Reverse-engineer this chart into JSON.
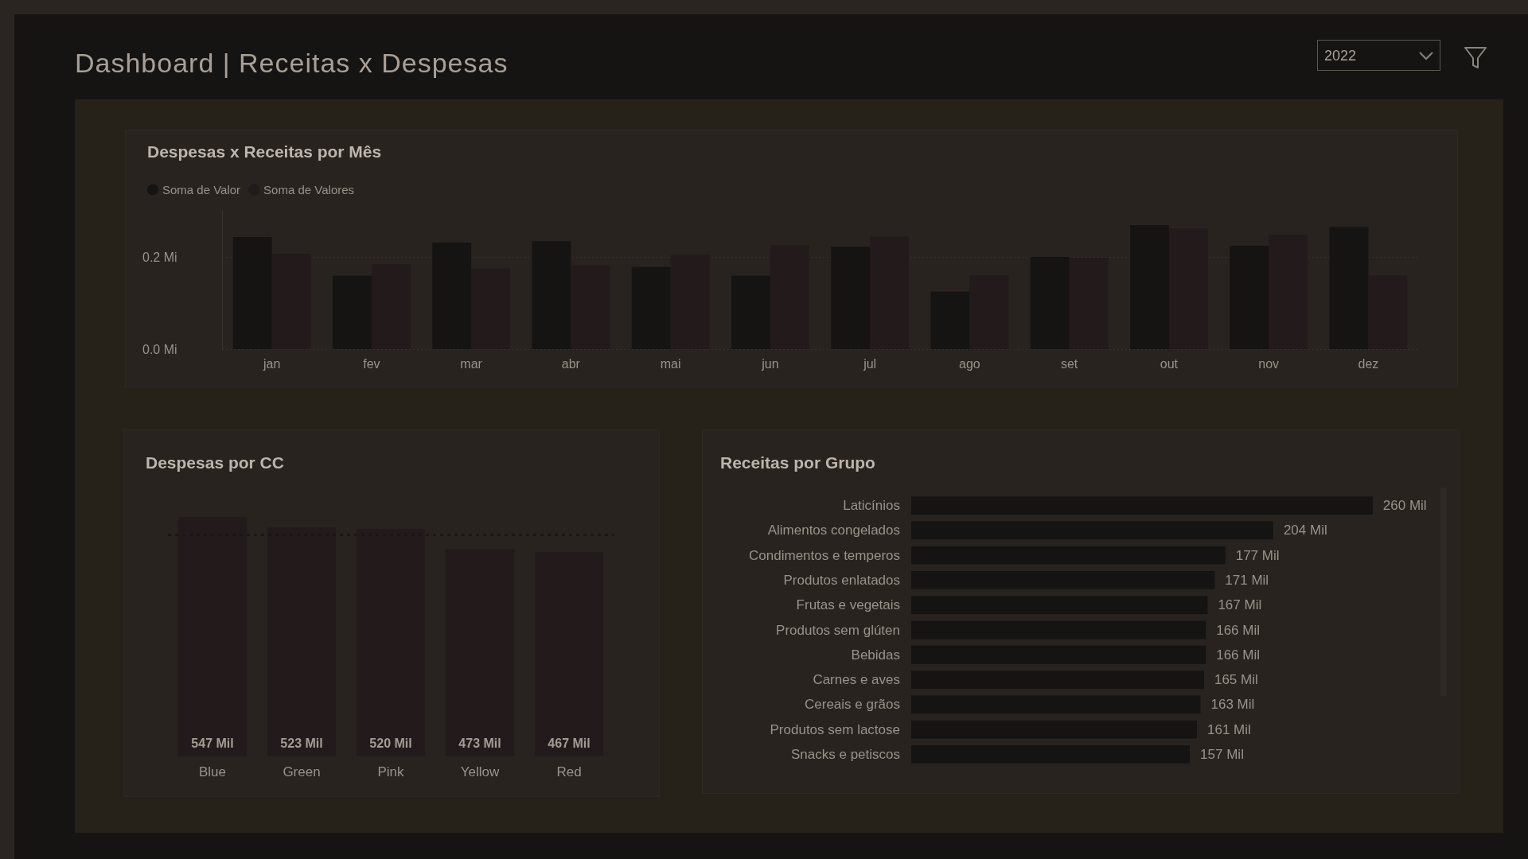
{
  "chart_data": [
    {
      "type": "other",
      "title": "Dashboard | Receitas x Despesas",
      "annotations": [
        "2022"
      ]
    },
    {
      "type": "bar",
      "title": "Despesas x Receitas por Mês",
      "categories": [
        "jan",
        "fev",
        "mar",
        "abr",
        "mai",
        "jun",
        "jul",
        "ago",
        "set",
        "out",
        "nov",
        "dez"
      ],
      "series": [
        {
          "name": "Soma de Valor",
          "color": "#151412",
          "values": [
            0.243,
            0.159,
            0.231,
            0.234,
            0.178,
            0.159,
            0.222,
            0.125,
            0.2,
            0.269,
            0.224,
            0.265
          ]
        },
        {
          "name": "Soma de Valores",
          "color": "#231a1b",
          "values": [
            0.207,
            0.184,
            0.175,
            0.182,
            0.204,
            0.225,
            0.244,
            0.16,
            0.198,
            0.262,
            0.248,
            0.16
          ]
        }
      ],
      "ylim": [
        0,
        0.3
      ],
      "yticks": [
        {
          "value": 0,
          "label": "0.0 Mi"
        },
        {
          "value": 0.2,
          "label": "0.2 Mi"
        }
      ],
      "legend": "top left",
      "grid": "y"
    },
    {
      "type": "bar",
      "title": "Despesas por CC",
      "categories": [
        "Blue",
        "Green",
        "Pink",
        "Yellow",
        "Red"
      ],
      "values": [
        547,
        523,
        520,
        473,
        467
      ],
      "color": "#231b1b",
      "value_labels": [
        "547 Mil",
        "523 Mil",
        "520 Mil",
        "473 Mil",
        "467 Mil"
      ],
      "ref_lines": [
        {
          "axis": "y",
          "value": 506,
          "color": "#1a1715",
          "line_style": "dotted"
        }
      ],
      "tick_labels": "x"
    },
    {
      "type": "bar",
      "title": "Receitas por Grupo",
      "orientation": "horizontal",
      "categories": [
        "Laticínios",
        "Alimentos congelados",
        "Condimentos e temperos",
        "Produtos enlatados",
        "Frutas e vegetais",
        "Produtos sem glúten",
        "Bebidas",
        "Carnes e aves",
        "Cereais e grãos",
        "Produtos sem lactose",
        "Snacks e petiscos"
      ],
      "values": [
        260,
        204,
        177,
        171,
        167,
        166,
        166,
        165,
        163,
        161,
        157
      ],
      "color": "#151412",
      "value_labels": [
        "260 Mil",
        "204 Mil",
        "177 Mil",
        "171 Mil",
        "167 Mil",
        "166 Mil",
        "166 Mil",
        "165 Mil",
        "163 Mil",
        "161 Mil",
        "157 Mil"
      ],
      "tick_labels": "y"
    }
  ]
}
